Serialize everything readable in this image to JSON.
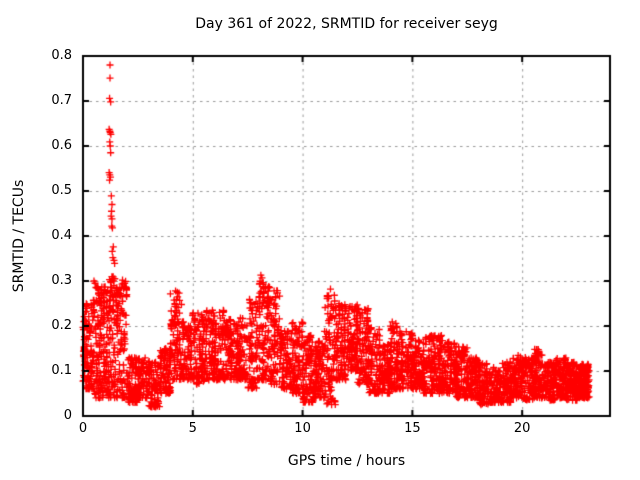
{
  "chart_data": {
    "type": "scatter",
    "title": "Day 361 of 2022, SRMTID for receiver seyg",
    "xlabel": "GPS time / hours",
    "ylabel": "SRMTID / TECUs",
    "xlim": [
      0,
      24
    ],
    "ylim": [
      0,
      0.8
    ],
    "xticks": [
      0,
      5,
      10,
      15,
      20
    ],
    "yticks": [
      0,
      0.1,
      0.2,
      0.3,
      0.4,
      0.5,
      0.6,
      0.7,
      0.8
    ],
    "grid": true,
    "grid_style": "dashed",
    "legend": false,
    "marker": {
      "shape": "plus",
      "size": 7,
      "stroke": 1.3
    },
    "colors": {
      "marker": "#ff0000",
      "grid": "#999999",
      "axis": "#000000",
      "background": "#ffffff",
      "text": "#000000"
    },
    "series": [
      {
        "name": "SRMTID",
        "x_start": 0.0,
        "x_end": 23.05,
        "outlier_points": [
          [
            1.23,
            0.78
          ],
          [
            1.23,
            0.751
          ],
          [
            1.21,
            0.706
          ],
          [
            1.26,
            0.698
          ],
          [
            1.19,
            0.637
          ],
          [
            1.22,
            0.633
          ],
          [
            1.24,
            0.63
          ],
          [
            1.27,
            0.626
          ],
          [
            1.22,
            0.609
          ],
          [
            1.24,
            0.6
          ],
          [
            1.26,
            0.585
          ],
          [
            1.19,
            0.541
          ],
          [
            1.22,
            0.536
          ],
          [
            1.25,
            0.531
          ],
          [
            1.21,
            0.524
          ],
          [
            1.29,
            0.489
          ],
          [
            1.32,
            0.47
          ],
          [
            1.3,
            0.455
          ],
          [
            1.28,
            0.444
          ],
          [
            1.32,
            0.438
          ],
          [
            1.31,
            0.422
          ],
          [
            1.34,
            0.418
          ],
          [
            1.38,
            0.376
          ],
          [
            1.33,
            0.366
          ],
          [
            1.36,
            0.352
          ],
          [
            1.41,
            0.346
          ],
          [
            1.44,
            0.339
          ],
          [
            8.1,
            0.313
          ],
          [
            8.15,
            0.307
          ],
          [
            0.5,
            0.3
          ],
          [
            0.55,
            0.295
          ],
          [
            1.45,
            0.305
          ],
          [
            1.8,
            0.302
          ],
          [
            1.9,
            0.295
          ],
          [
            11.27,
            0.282
          ]
        ],
        "band_envelope": {
          "note": "Dense noisy scatter band read from the plot; each bin is [startHour, endHour, minTECU, maxTECU, densityWeight]",
          "bins": [
            [
              0.0,
              0.5,
              0.06,
              0.26,
              1.3
            ],
            [
              0.5,
              1.0,
              0.04,
              0.29,
              1.2
            ],
            [
              1.0,
              1.5,
              0.04,
              0.31,
              1.2
            ],
            [
              1.5,
              2.0,
              0.04,
              0.3,
              1.1
            ],
            [
              2.0,
              2.5,
              0.03,
              0.13,
              1.0
            ],
            [
              2.5,
              3.0,
              0.04,
              0.13,
              1.0
            ],
            [
              3.0,
              3.5,
              0.02,
              0.12,
              1.0
            ],
            [
              3.5,
              4.0,
              0.05,
              0.15,
              1.0
            ],
            [
              4.0,
              4.5,
              0.08,
              0.28,
              1.0
            ],
            [
              4.5,
              5.0,
              0.08,
              0.21,
              1.0
            ],
            [
              5.0,
              5.5,
              0.07,
              0.23,
              1.0
            ],
            [
              5.5,
              6.0,
              0.08,
              0.235,
              1.0
            ],
            [
              6.0,
              6.5,
              0.08,
              0.235,
              1.0
            ],
            [
              6.5,
              7.0,
              0.08,
              0.22,
              1.0
            ],
            [
              7.0,
              7.5,
              0.08,
              0.22,
              1.0
            ],
            [
              7.5,
              8.0,
              0.06,
              0.26,
              1.0
            ],
            [
              8.0,
              8.5,
              0.08,
              0.3,
              1.0
            ],
            [
              8.5,
              9.0,
              0.07,
              0.28,
              1.0
            ],
            [
              9.0,
              9.5,
              0.06,
              0.19,
              1.0
            ],
            [
              9.5,
              10.0,
              0.05,
              0.21,
              1.0
            ],
            [
              10.0,
              10.5,
              0.03,
              0.18,
              1.0
            ],
            [
              10.5,
              11.0,
              0.04,
              0.17,
              1.0
            ],
            [
              11.0,
              11.5,
              0.025,
              0.27,
              1.0
            ],
            [
              11.5,
              12.0,
              0.08,
              0.25,
              1.1
            ],
            [
              12.0,
              12.5,
              0.1,
              0.25,
              1.2
            ],
            [
              12.5,
              13.0,
              0.07,
              0.24,
              1.0
            ],
            [
              13.0,
              13.5,
              0.05,
              0.2,
              1.0
            ],
            [
              13.5,
              14.0,
              0.05,
              0.16,
              1.0
            ],
            [
              14.0,
              14.5,
              0.06,
              0.21,
              1.0
            ],
            [
              14.5,
              15.0,
              0.06,
              0.19,
              1.0
            ],
            [
              15.0,
              15.5,
              0.06,
              0.17,
              1.0
            ],
            [
              15.5,
              16.0,
              0.05,
              0.18,
              1.0
            ],
            [
              16.0,
              16.5,
              0.05,
              0.18,
              1.0
            ],
            [
              16.5,
              17.0,
              0.05,
              0.165,
              1.0
            ],
            [
              17.0,
              17.5,
              0.04,
              0.155,
              1.0
            ],
            [
              17.5,
              18.0,
              0.04,
              0.13,
              1.0
            ],
            [
              18.0,
              18.5,
              0.025,
              0.12,
              1.0
            ],
            [
              18.5,
              19.0,
              0.03,
              0.11,
              1.0
            ],
            [
              19.0,
              19.5,
              0.03,
              0.12,
              1.0
            ],
            [
              19.5,
              20.0,
              0.04,
              0.135,
              1.0
            ],
            [
              20.0,
              20.5,
              0.035,
              0.13,
              1.0
            ],
            [
              20.5,
              21.0,
              0.04,
              0.15,
              1.0
            ],
            [
              21.0,
              21.5,
              0.035,
              0.12,
              1.0
            ],
            [
              21.5,
              22.0,
              0.04,
              0.13,
              1.1
            ],
            [
              22.0,
              22.5,
              0.035,
              0.12,
              1.4
            ],
            [
              22.5,
              23.05,
              0.04,
              0.115,
              1.6
            ]
          ]
        }
      }
    ],
    "render_hint": {
      "seed": 1361,
      "points_per_hour": 150
    }
  }
}
